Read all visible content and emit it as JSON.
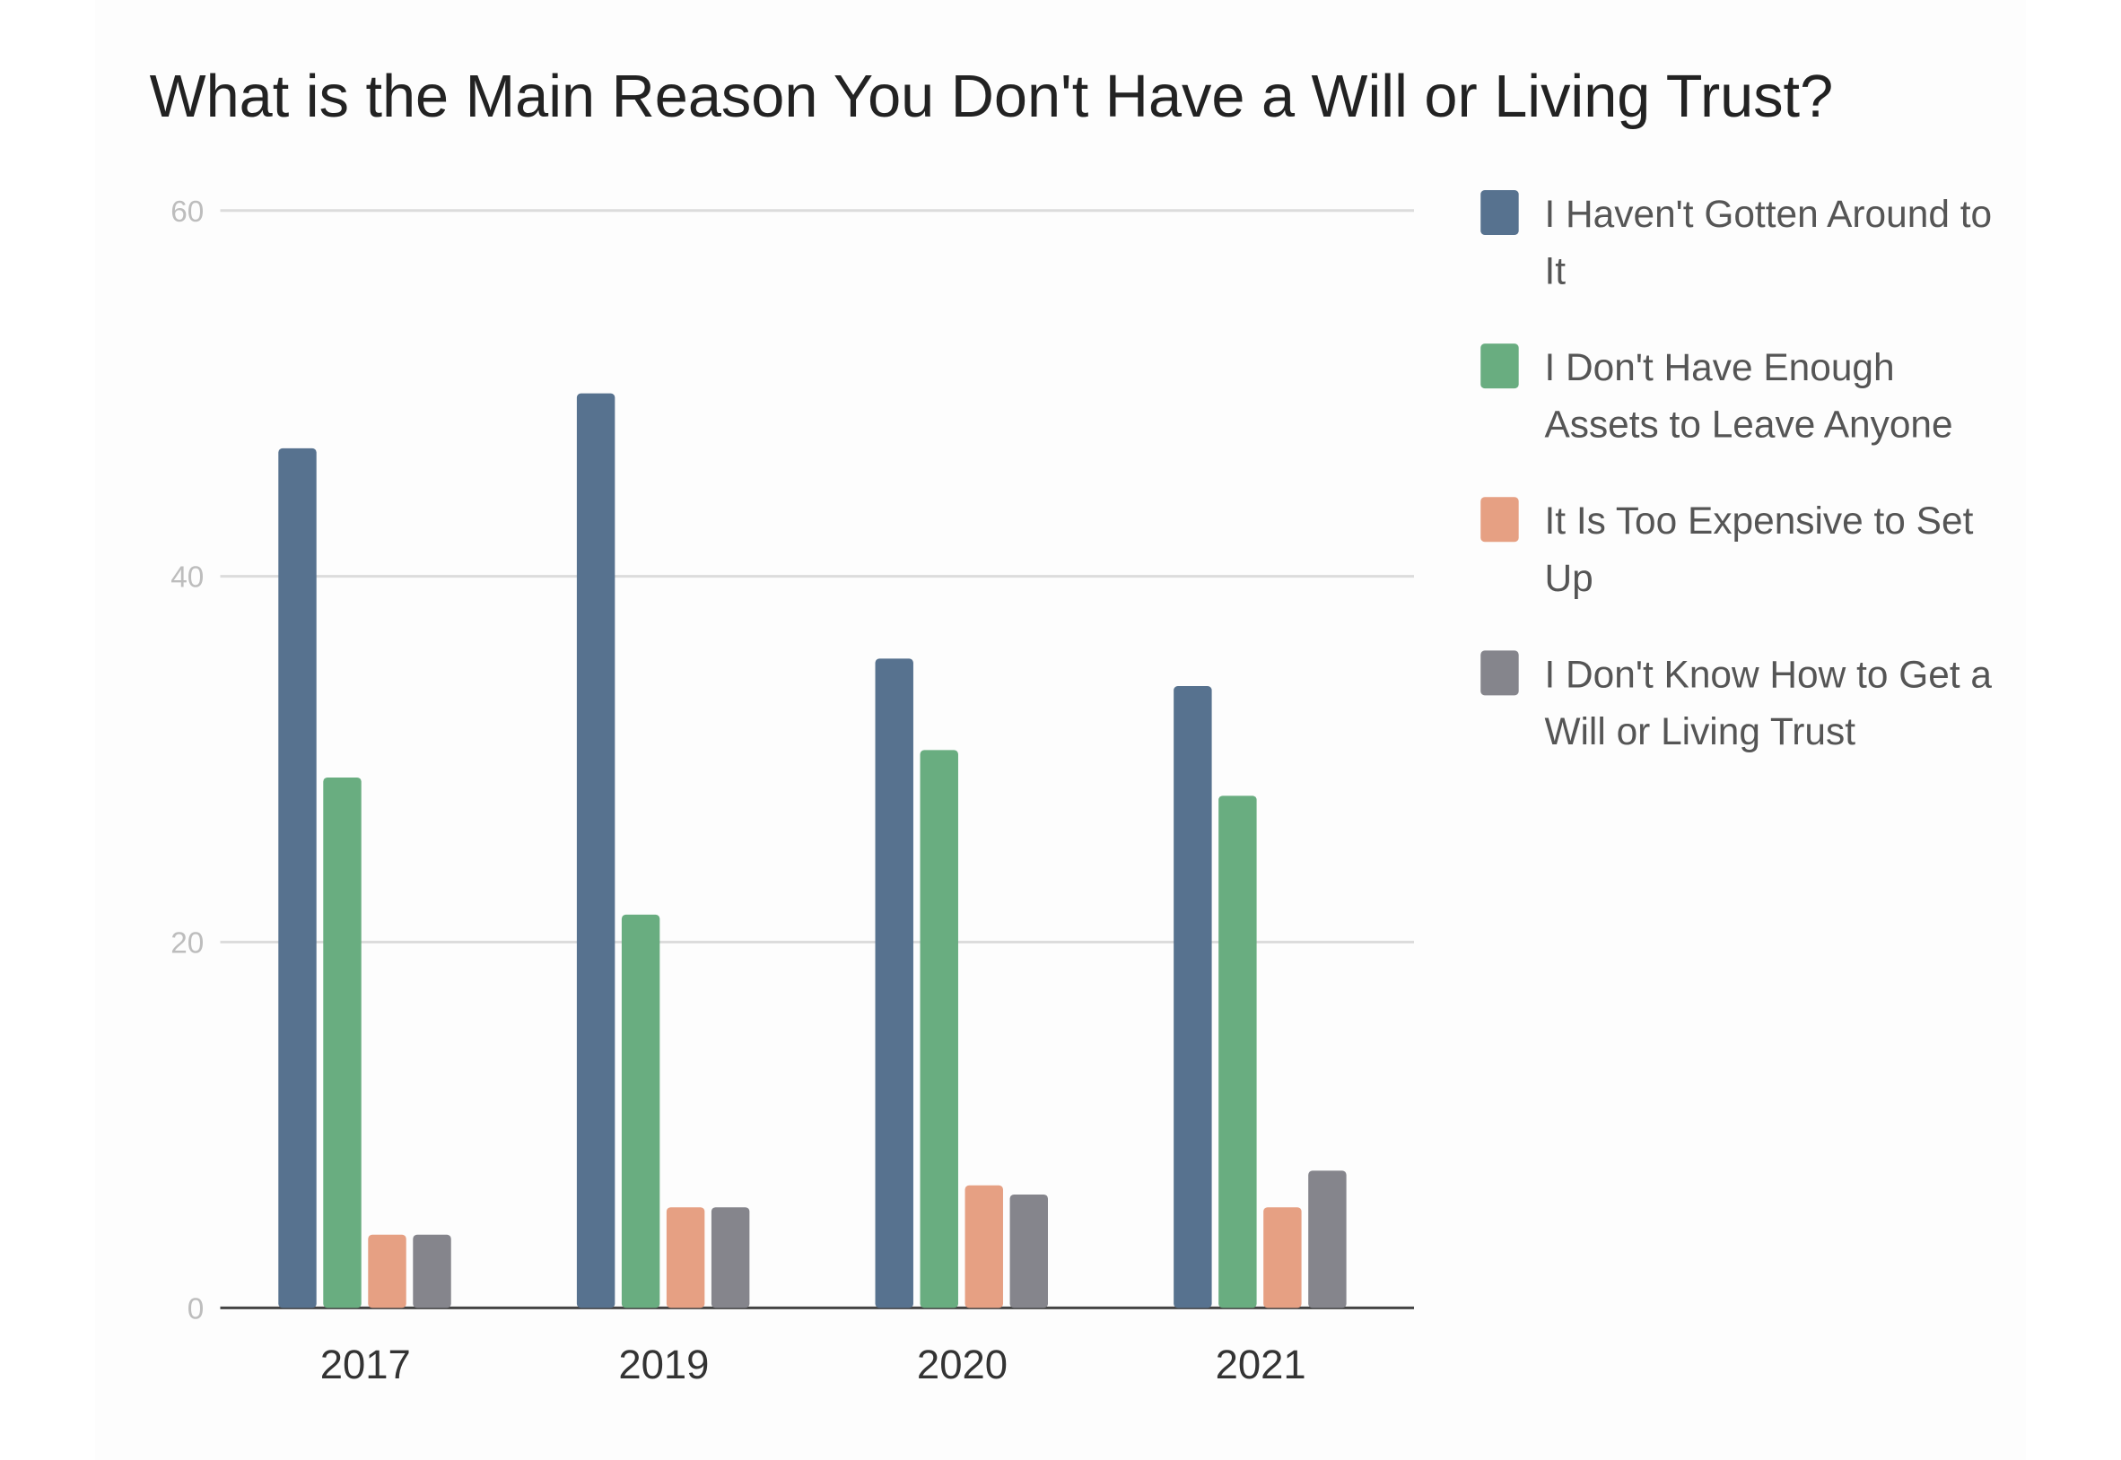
{
  "chart_data": {
    "type": "bar",
    "title": "What is the Main Reason You Don't Have a Will or Living Trust?",
    "xlabel": "",
    "ylabel": "",
    "categories": [
      "2017",
      "2019",
      "2020",
      "2021"
    ],
    "ylim": [
      0,
      60
    ],
    "yticks": [
      0,
      20,
      40,
      60
    ],
    "grid": true,
    "legend_position": "right",
    "series": [
      {
        "name": "I Haven't Gotten Around to It",
        "legend_lines": [
          "I Haven't Gotten Around to",
          "It"
        ],
        "color": "#57728f",
        "values": [
          47,
          50,
          35.5,
          34
        ]
      },
      {
        "name": "I Don't Have Enough Assets to Leave Anyone",
        "legend_lines": [
          "I Don't Have Enough",
          "Assets to Leave Anyone"
        ],
        "color": "#69ad80",
        "values": [
          29,
          21.5,
          30.5,
          28
        ]
      },
      {
        "name": "It Is Too Expensive to Set Up",
        "legend_lines": [
          "It Is Too Expensive to Set",
          "Up"
        ],
        "color": "#e6a083",
        "values": [
          4,
          5.5,
          6.7,
          5.5
        ]
      },
      {
        "name": "I Don't Know How to Get a Will or Living Trust",
        "legend_lines": [
          "I Don't Know How to Get a",
          "Will or Living Trust"
        ],
        "color": "#85858c",
        "values": [
          4,
          5.5,
          6.2,
          7.5
        ]
      }
    ]
  }
}
